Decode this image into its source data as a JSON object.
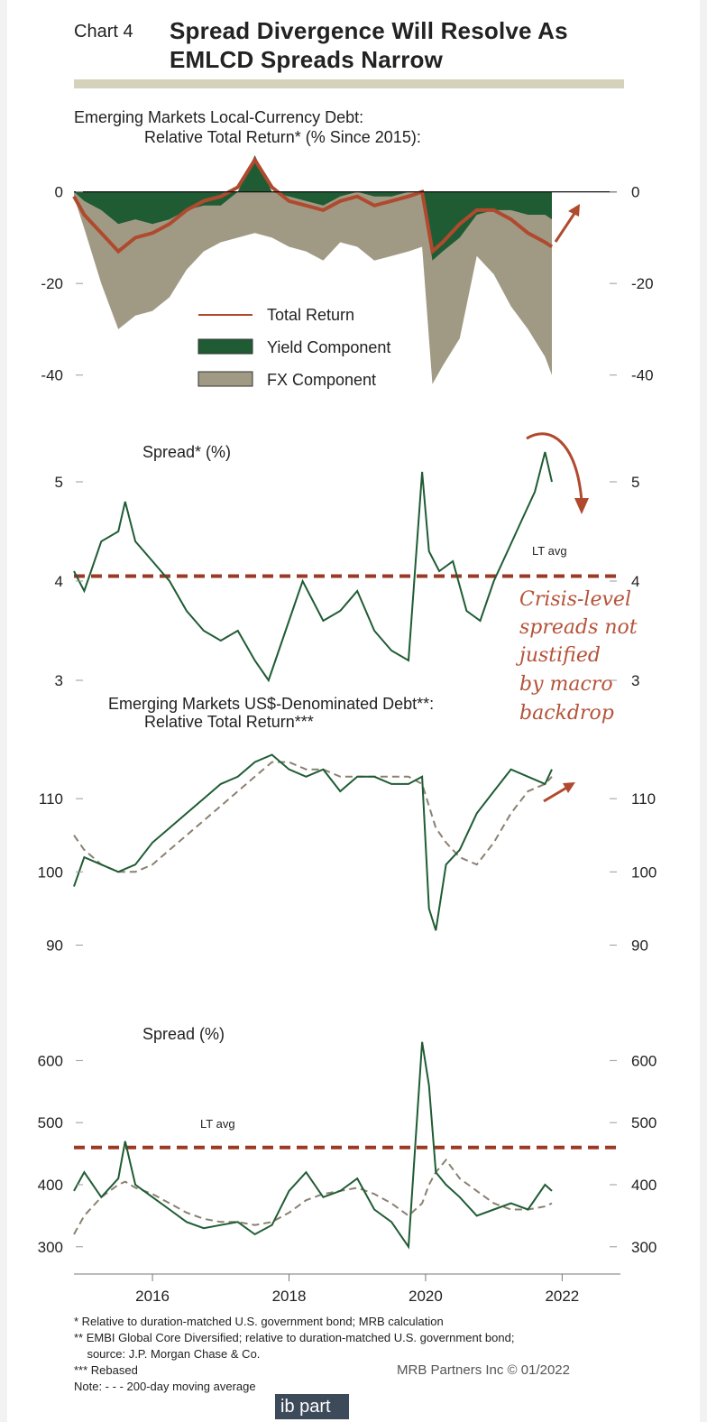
{
  "title": {
    "label": "Chart 4",
    "text": "Spread Divergence Will Resolve As EMLCD Spreads Narrow"
  },
  "colors": {
    "green": "#1f5c34",
    "beige": "#a09a84",
    "red": "#b04a2e",
    "dark_red": "#9a3a24",
    "moving_avg": "#8b8070"
  },
  "footnotes": [
    "* Relative to duration-matched U.S. government bond; MRB calculation",
    "** EMBI Global Core Diversified; relative to duration-matched U.S. government bond;",
    "    source: J.P. Morgan Chase & Co.",
    "*** Rebased",
    "Note: - - - 200-day moving average"
  ],
  "credit": "MRB Partners Inc © 01/2022",
  "logo_text": "ib part",
  "chart_data": [
    {
      "type": "area",
      "title": "Emerging Markets Local-Currency Debt: Relative Total Return* (% Since 2015):",
      "ylim": [
        -44,
        8
      ],
      "yticks": [
        "0",
        "-20",
        "-40"
      ],
      "x": [
        2014.85,
        2015.0,
        2015.25,
        2015.5,
        2015.75,
        2016.0,
        2016.25,
        2016.5,
        2016.75,
        2017.0,
        2017.25,
        2017.5,
        2017.75,
        2018.0,
        2018.25,
        2018.5,
        2018.75,
        2019.0,
        2019.25,
        2019.5,
        2019.75,
        2019.95,
        2020.1,
        2020.25,
        2020.5,
        2020.75,
        2021.0,
        2021.25,
        2021.5,
        2021.75,
        2021.85
      ],
      "series": [
        {
          "name": "Total Return",
          "values": [
            -1,
            -5,
            -9,
            -13,
            -10,
            -9,
            -7,
            -4,
            -2,
            -1,
            1,
            7,
            1,
            -2,
            -3,
            -4,
            -2,
            -1,
            -3,
            -2,
            -1,
            0,
            -13,
            -11,
            -7,
            -4,
            -4,
            -6,
            -9,
            -11,
            -12
          ]
        },
        {
          "name": "Yield Component",
          "values": [
            0,
            -2,
            -4,
            -7,
            -6,
            -7,
            -6,
            -4,
            -3,
            -3,
            0,
            8,
            0,
            -1,
            -2,
            -3,
            -1,
            0,
            -1,
            -1,
            0,
            0,
            -15,
            -13,
            -10,
            -5,
            -4,
            -4,
            -5,
            -5,
            -6
          ]
        },
        {
          "name": "FX Component",
          "values": [
            -1,
            -8,
            -20,
            -30,
            -27,
            -26,
            -23,
            -17,
            -13,
            -11,
            -10,
            -9,
            -10,
            -12,
            -13,
            -15,
            -11,
            -12,
            -15,
            -14,
            -13,
            -12,
            -42,
            -38,
            -32,
            -14,
            -18,
            -25,
            -30,
            -36,
            -40
          ]
        }
      ],
      "legend": [
        "Total Return",
        "Yield Component",
        "FX Component"
      ]
    },
    {
      "type": "line",
      "title": "Spread* (%)",
      "ylim": [
        2.9,
        5.5
      ],
      "yticks": [
        "5",
        "4",
        "3"
      ],
      "x": [
        2014.85,
        2015.0,
        2015.25,
        2015.5,
        2015.6,
        2015.75,
        2016.0,
        2016.25,
        2016.5,
        2016.75,
        2017.0,
        2017.25,
        2017.5,
        2017.7,
        2018.0,
        2018.2,
        2018.5,
        2018.75,
        2019.0,
        2019.25,
        2019.5,
        2019.75,
        2019.95,
        2020.05,
        2020.2,
        2020.4,
        2020.6,
        2020.8,
        2021.0,
        2021.2,
        2021.4,
        2021.6,
        2021.75,
        2021.85
      ],
      "series": [
        {
          "name": "Spread",
          "values": [
            4.1,
            3.9,
            4.4,
            4.5,
            4.8,
            4.4,
            4.2,
            4.0,
            3.7,
            3.5,
            3.4,
            3.5,
            3.2,
            3.0,
            3.6,
            4.0,
            3.6,
            3.7,
            3.9,
            3.5,
            3.3,
            3.2,
            5.1,
            4.3,
            4.1,
            4.2,
            3.7,
            3.6,
            4.0,
            4.3,
            4.6,
            4.9,
            5.3,
            5.0
          ]
        }
      ],
      "lt_avg": 4.05,
      "annotations": [
        "LT avg",
        "Crisis-level",
        "spreads not",
        "justified",
        "by macro",
        "backdrop"
      ]
    },
    {
      "type": "line",
      "title": "Emerging Markets US$-Denominated Debt**: Relative Total Return***",
      "ylim": [
        85,
        120
      ],
      "yticks": [
        "110",
        "100",
        "90"
      ],
      "x": [
        2014.85,
        2015.0,
        2015.25,
        2015.5,
        2015.75,
        2016.0,
        2016.25,
        2016.5,
        2016.75,
        2017.0,
        2017.25,
        2017.5,
        2017.75,
        2018.0,
        2018.25,
        2018.5,
        2018.75,
        2019.0,
        2019.25,
        2019.5,
        2019.75,
        2019.95,
        2020.05,
        2020.15,
        2020.3,
        2020.5,
        2020.75,
        2021.0,
        2021.25,
        2021.5,
        2021.75,
        2021.85
      ],
      "series": [
        {
          "name": "Relative Total Return",
          "values": [
            98,
            102,
            101,
            100,
            101,
            104,
            106,
            108,
            110,
            112,
            113,
            115,
            116,
            114,
            113,
            114,
            111,
            113,
            113,
            112,
            112,
            113,
            95,
            92,
            101,
            103,
            108,
            111,
            114,
            113,
            112,
            114
          ]
        },
        {
          "name": "200-day moving average",
          "values": [
            105,
            103,
            101,
            100,
            100,
            101,
            103,
            105,
            107,
            109,
            111,
            113,
            115,
            115,
            114,
            114,
            113,
            113,
            113,
            113,
            113,
            112,
            109,
            106,
            104,
            102,
            101,
            104,
            108,
            111,
            112,
            113
          ]
        }
      ]
    },
    {
      "type": "line",
      "title": "Spread (%)",
      "ylim": [
        275,
        650
      ],
      "yticks": [
        "600",
        "500",
        "400",
        "300"
      ],
      "xticks": [
        "2016",
        "2018",
        "2020",
        "2022"
      ],
      "x": [
        2014.85,
        2015.0,
        2015.25,
        2015.5,
        2015.6,
        2015.75,
        2016.0,
        2016.25,
        2016.5,
        2016.75,
        2017.0,
        2017.25,
        2017.5,
        2017.75,
        2018.0,
        2018.25,
        2018.5,
        2018.75,
        2019.0,
        2019.25,
        2019.5,
        2019.75,
        2019.95,
        2020.05,
        2020.15,
        2020.3,
        2020.5,
        2020.75,
        2021.0,
        2021.25,
        2021.5,
        2021.75,
        2021.85
      ],
      "series": [
        {
          "name": "Spread",
          "values": [
            390,
            420,
            380,
            410,
            470,
            400,
            380,
            360,
            340,
            330,
            335,
            340,
            320,
            335,
            390,
            420,
            380,
            390,
            410,
            360,
            340,
            300,
            630,
            560,
            420,
            400,
            380,
            350,
            360,
            370,
            360,
            400,
            390
          ]
        },
        {
          "name": "200-day moving average",
          "values": [
            320,
            350,
            380,
            400,
            405,
            395,
            385,
            370,
            355,
            345,
            340,
            340,
            335,
            340,
            355,
            375,
            385,
            390,
            395,
            385,
            370,
            350,
            370,
            400,
            420,
            440,
            410,
            390,
            370,
            360,
            360,
            365,
            370
          ]
        }
      ],
      "lt_avg": 460,
      "annotations": [
        "LT avg"
      ]
    }
  ]
}
